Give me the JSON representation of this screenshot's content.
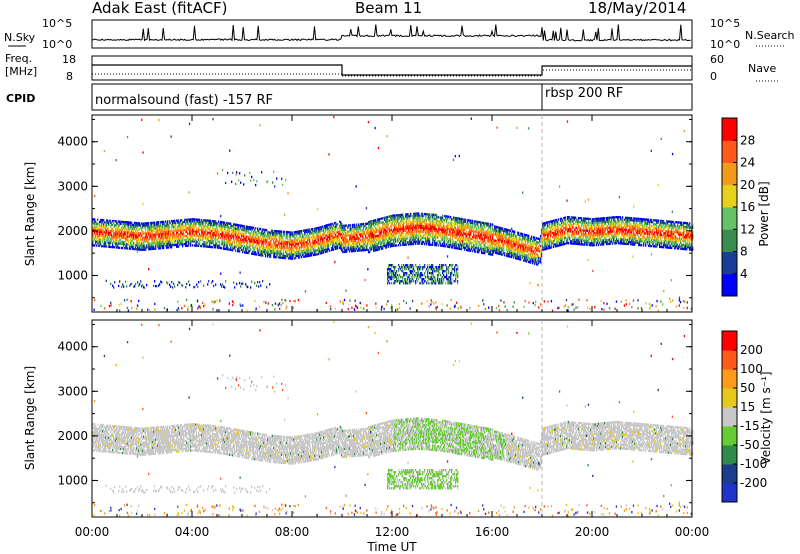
{
  "header": {
    "station": "Adak East (fitACF)",
    "beam": "Beam 11",
    "date": "18/May/2014"
  },
  "summary": {
    "nsky_label": "N.Sky",
    "nsky_ticks": [
      "10^5",
      "10^0"
    ],
    "nsearch_label": "N.Search",
    "nsearch_ticks": [
      "10^5",
      "10^0"
    ],
    "freq_label": [
      "Freq.",
      "[MHz]"
    ],
    "freq_ticks": [
      "18",
      "8"
    ],
    "nave_label": "Nave",
    "nave_ticks": [
      "60",
      "0"
    ],
    "cpid_label": "CPID",
    "cpid_segments": [
      "normalsound (fast) -157 RF",
      "rbsp 200 RF"
    ]
  },
  "axes": {
    "xlabel": "Time UT",
    "ylabel": "Slant Range [km]",
    "xticks": [
      "00:00",
      "04:00",
      "08:00",
      "12:00",
      "16:00",
      "20:00",
      "00:00"
    ],
    "yticks": [
      "1000",
      "2000",
      "3000",
      "4000"
    ]
  },
  "power_scale": {
    "label": "Power [dB]",
    "ticks": [
      "4",
      "8",
      "12",
      "16",
      "20",
      "24",
      "28"
    ],
    "colors": [
      "#0000ff",
      "#1a3d99",
      "#3d8c4f",
      "#66c266",
      "#e6d21a",
      "#f29a1a",
      "#ff5a1a",
      "#ff0000"
    ]
  },
  "velocity_scale": {
    "label": "Velocity [m s⁻¹]",
    "ticks": [
      "200",
      "100",
      "50",
      "15",
      "-15",
      "-50",
      "-100",
      "-200"
    ],
    "colors": [
      "#2233cc",
      "#1a3d8c",
      "#2e8b4a",
      "#66cc33",
      "#c8c8c8",
      "#e6c81a",
      "#ff9a1a",
      "#ff5a1a",
      "#ff0000"
    ]
  },
  "chart_data": {
    "type": "heatmap",
    "panels": [
      "Power [dB]",
      "Velocity [m s⁻¹]"
    ],
    "x_range_hours": [
      0,
      24
    ],
    "ylim_km": [
      180,
      4600
    ],
    "backscatter_band_center_km": [
      [
        0.0,
        1950
      ],
      [
        1.0,
        1900
      ],
      [
        2.0,
        1850
      ],
      [
        3.0,
        1900
      ],
      [
        4.0,
        1950
      ],
      [
        5.0,
        1900
      ],
      [
        6.0,
        1800
      ],
      [
        7.0,
        1700
      ],
      [
        8.0,
        1650
      ],
      [
        9.0,
        1750
      ],
      [
        9.9,
        1900
      ],
      [
        10.0,
        1800
      ],
      [
        11.0,
        1850
      ],
      [
        12.0,
        2000
      ],
      [
        13.0,
        2050
      ],
      [
        14.0,
        2000
      ],
      [
        15.0,
        1900
      ],
      [
        16.0,
        1800
      ],
      [
        17.0,
        1650
      ],
      [
        17.9,
        1500
      ],
      [
        18.0,
        1850
      ],
      [
        19.0,
        2000
      ],
      [
        20.0,
        1950
      ],
      [
        21.0,
        2000
      ],
      [
        22.0,
        1950
      ],
      [
        23.0,
        1900
      ],
      [
        24.0,
        1850
      ]
    ],
    "cpid_change_ut": 18.0,
    "freq_step_ut": 10.0
  }
}
